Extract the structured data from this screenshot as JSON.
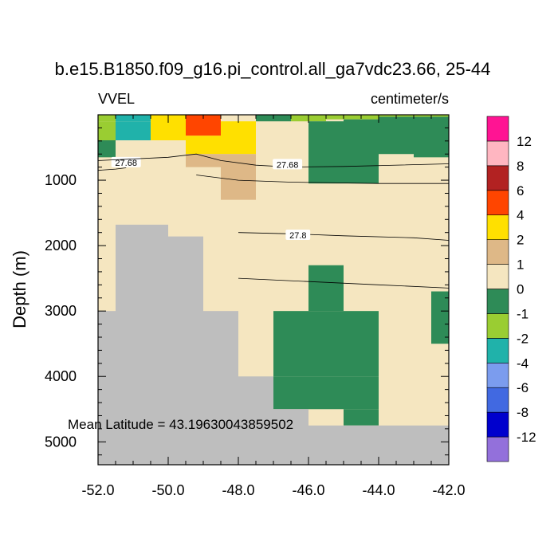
{
  "chart_data": {
    "type": "heatmap",
    "title": "b.e15.B1850.f09_g16.pi_control.all_ga7vdc23.66, 25-44",
    "left_label": "VVEL",
    "right_label": "centimeter/s",
    "ylabel": "Depth (m)",
    "xlabel": "",
    "annotation": "Mean Latitude = 43.19630043859502",
    "xlim": [
      -52.0,
      -42.0
    ],
    "ylim": [
      5350,
      0
    ],
    "x_ticks": [
      -52,
      -50,
      -48,
      -46,
      -44,
      -42
    ],
    "x_tick_labels": [
      "-52.0",
      "-50.0",
      "-48.0",
      "-46.0",
      "-44.0",
      "-42.0"
    ],
    "y_ticks": [
      1000,
      2000,
      3000,
      4000,
      5000
    ],
    "y_tick_labels": [
      "1000",
      "2000",
      "3000",
      "4000",
      "5000"
    ],
    "colorbar": {
      "colors": [
        "#9370DB",
        "#0000CD",
        "#4169E1",
        "#7B9CEE",
        "#20B2AA",
        "#9ACD32",
        "#2E8B57",
        "#F5E6C0",
        "#DEB887",
        "#FFE000",
        "#FF4500",
        "#B22222",
        "#FFB6C1",
        "#FF1493"
      ],
      "labels": [
        "-12",
        "-8",
        "-6",
        "-4",
        "-2",
        "-1",
        "0",
        "1",
        "2",
        "4",
        "6",
        "8",
        "12"
      ]
    },
    "land_color": "#BEBEBE",
    "land_key": "land",
    "cells": [
      {
        "x0": -52.0,
        "x1": -51.5,
        "y0": 0,
        "y1": 100,
        "c": 5
      },
      {
        "x0": -52.0,
        "x1": -51.5,
        "y0": 100,
        "y1": 390,
        "c": 5
      },
      {
        "x0": -51.5,
        "x1": -50.5,
        "y0": 0,
        "y1": 100,
        "c": 4
      },
      {
        "x0": -51.5,
        "x1": -50.5,
        "y0": 100,
        "y1": 390,
        "c": 4
      },
      {
        "x0": -50.5,
        "x1": -49.5,
        "y0": 0,
        "y1": 390,
        "c": 9
      },
      {
        "x0": -49.5,
        "x1": -48.5,
        "y0": 0,
        "y1": 320,
        "c": 10
      },
      {
        "x0": -49.5,
        "x1": -48.5,
        "y0": 320,
        "y1": 600,
        "c": 9
      },
      {
        "x0": -49.5,
        "x1": -48.5,
        "y0": 600,
        "y1": 800,
        "c": 8
      },
      {
        "x0": -48.5,
        "x1": -47.5,
        "y0": 100,
        "y1": 600,
        "c": 9
      },
      {
        "x0": -48.5,
        "x1": -47.5,
        "y0": 600,
        "y1": 1300,
        "c": 8
      },
      {
        "x0": -47.5,
        "x1": -46.5,
        "y0": 0,
        "y1": 100,
        "c": 6
      },
      {
        "x0": -46.5,
        "x1": -46.0,
        "y0": 0,
        "y1": 100,
        "c": 5
      },
      {
        "x0": -46.0,
        "x1": -45.5,
        "y0": 0,
        "y1": 100,
        "c": 5
      },
      {
        "x0": -45.5,
        "x1": -44.0,
        "y0": 0,
        "y1": 70,
        "c": 5
      },
      {
        "x0": -44.0,
        "x1": -42.0,
        "y0": 0,
        "y1": 30,
        "c": 5
      },
      {
        "x0": -52.0,
        "x1": -51.5,
        "y0": 390,
        "y1": 650,
        "c": 6
      },
      {
        "x0": -46.0,
        "x1": -45.0,
        "y0": 100,
        "y1": 1050,
        "c": 6
      },
      {
        "x0": -45.0,
        "x1": -44.0,
        "y0": 70,
        "y1": 1050,
        "c": 6
      },
      {
        "x0": -44.0,
        "x1": -43.0,
        "y0": 30,
        "y1": 600,
        "c": 6
      },
      {
        "x0": -43.0,
        "x1": -42.0,
        "y0": 30,
        "y1": 650,
        "c": 6
      },
      {
        "x0": -46.0,
        "x1": -45.0,
        "y0": 2300,
        "y1": 3000,
        "c": 6
      },
      {
        "x0": -47.0,
        "x1": -44.0,
        "y0": 3000,
        "y1": 4000,
        "c": 6
      },
      {
        "x0": -47.0,
        "x1": -46.0,
        "y0": 4000,
        "y1": 4500,
        "c": 6
      },
      {
        "x0": -45.0,
        "x1": -44.0,
        "y0": 4000,
        "y1": 4500,
        "c": 6
      },
      {
        "x0": -46.0,
        "x1": -45.0,
        "y0": 4000,
        "y1": 4500,
        "c": 6
      },
      {
        "x0": -45.0,
        "x1": -44.0,
        "y0": 4500,
        "y1": 4750,
        "c": 6
      },
      {
        "x0": -42.5,
        "x1": -42.0,
        "y0": 2700,
        "y1": 3500,
        "c": 6
      },
      {
        "x0": -52.0,
        "x1": -51.0,
        "y0": 3000,
        "y1": 5350,
        "c": "land"
      },
      {
        "x0": -51.5,
        "x1": -50.0,
        "y0": 1680,
        "y1": 5350,
        "c": "land"
      },
      {
        "x0": -50.0,
        "x1": -49.0,
        "y0": 1860,
        "y1": 5350,
        "c": "land"
      },
      {
        "x0": -49.0,
        "x1": -48.0,
        "y0": 3000,
        "y1": 5350,
        "c": "land"
      },
      {
        "x0": -48.0,
        "x1": -47.0,
        "y0": 4000,
        "y1": 5350,
        "c": "land"
      },
      {
        "x0": -47.0,
        "x1": -46.0,
        "y0": 4500,
        "y1": 5350,
        "c": "land"
      },
      {
        "x0": -46.0,
        "x1": -42.0,
        "y0": 4750,
        "y1": 5350,
        "c": "land"
      }
    ],
    "contours": [
      {
        "label": "27.68",
        "points": [
          [
            -52.0,
            850
          ],
          [
            -51.5,
            830
          ],
          [
            -51.2,
            810
          ]
        ],
        "label_at": [
          -51.2,
          730
        ]
      },
      {
        "label": "27.68",
        "points": [
          [
            -52.0,
            700
          ],
          [
            -50.0,
            650
          ],
          [
            -49.2,
            600
          ],
          [
            -48.5,
            700
          ],
          [
            -47.5,
            770
          ],
          [
            -46.5,
            800
          ],
          [
            -45.0,
            790
          ],
          [
            -42.0,
            750
          ]
        ],
        "label_at": [
          -46.6,
          760
        ]
      },
      {
        "label": "",
        "points": [
          [
            -49.2,
            920
          ],
          [
            -48.0,
            1000
          ],
          [
            -46.5,
            1030
          ],
          [
            -44.0,
            1050
          ],
          [
            -42.0,
            1050
          ]
        ],
        "label_at": null
      },
      {
        "label": "27.8",
        "points": [
          [
            -48.0,
            1800
          ],
          [
            -46.5,
            1820
          ],
          [
            -45.0,
            1850
          ],
          [
            -43.0,
            1880
          ],
          [
            -42.0,
            1920
          ]
        ],
        "label_at": [
          -46.3,
          1840
        ]
      },
      {
        "label": "",
        "points": [
          [
            -48.0,
            2500
          ],
          [
            -46.0,
            2550
          ],
          [
            -44.0,
            2600
          ],
          [
            -42.0,
            2650
          ]
        ],
        "label_at": null
      }
    ]
  }
}
